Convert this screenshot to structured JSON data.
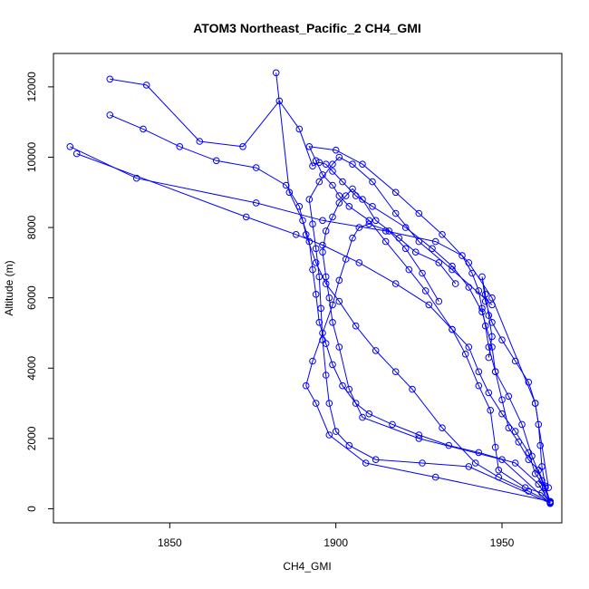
{
  "chart_data": {
    "type": "line",
    "title": "ATOM3 Northeast_Pacific_2 CH4_GMI",
    "xlabel": "CH4_GMI",
    "ylabel": "Altitude (m)",
    "xlim": [
      1815,
      1968
    ],
    "ylim": [
      -400,
      12950
    ],
    "xticks": [
      1850,
      1900,
      1950
    ],
    "yticks": [
      0,
      2000,
      4000,
      6000,
      8000,
      10000,
      12000
    ],
    "grid": false,
    "marker": "open-circle",
    "color": "#0000ff",
    "series": [
      {
        "x": [
          1964.5,
          1962,
          1957,
          1949,
          1948,
          1946.5,
          1943,
          1939,
          1935,
          1927,
          1922,
          1915,
          1910,
          1904,
          1901,
          1899,
          1896,
          1894,
          1892,
          1900,
          1908,
          1918,
          1925,
          1932,
          1940,
          1947,
          1960,
          1964
        ],
        "y": [
          180,
          450,
          600,
          1100,
          1750,
          2800,
          3500,
          4400,
          5100,
          6200,
          6800,
          7600,
          8200,
          8600,
          8900,
          9200,
          9500,
          9900,
          10300,
          10200,
          9800,
          9000,
          8400,
          7800,
          7000,
          6000,
          3000,
          600
        ]
      },
      {
        "x": [
          1964.5,
          1963,
          1961,
          1958,
          1955,
          1952,
          1950,
          1948,
          1947,
          1944,
          1940,
          1935,
          1929,
          1921,
          1911,
          1906,
          1902,
          1899,
          1897,
          1895,
          1893,
          1889,
          1883,
          1872,
          1859,
          1843,
          1832
        ],
        "y": [
          200,
          600,
          1100,
          1400,
          1900,
          2300,
          3100,
          3900,
          4600,
          5600,
          6300,
          6900,
          7400,
          8000,
          8600,
          8900,
          9300,
          9600,
          9800,
          9850,
          9750,
          10800,
          11600,
          10300,
          10450,
          12050,
          12220
        ]
      },
      {
        "x": [
          1964.5,
          1950,
          1925,
          1908,
          1904,
          1901,
          1899,
          1898,
          1897,
          1896,
          1897,
          1899,
          1901,
          1903,
          1905,
          1908,
          1912,
          1919,
          1924,
          1931,
          1936
        ],
        "y": [
          150,
          1400,
          2000,
          2600,
          3400,
          4600,
          5300,
          6000,
          6600,
          7300,
          7900,
          8300,
          8700,
          8900,
          9100,
          8800,
          8200,
          7700,
          7300,
          7000,
          6400
        ]
      },
      {
        "x": [
          1964.5,
          1961,
          1954,
          1943,
          1934,
          1925,
          1917,
          1910,
          1906,
          1902,
          1899,
          1897,
          1895,
          1894,
          1893,
          1892,
          1890,
          1886,
          1882
        ],
        "y": [
          170,
          700,
          1300,
          1600,
          1800,
          2100,
          2400,
          2700,
          3000,
          3500,
          4100,
          4700,
          5300,
          6100,
          6800,
          7600,
          8200,
          9000,
          12400
        ]
      },
      {
        "x": [
          1964.5,
          1940,
          1926,
          1912,
          1904,
          1900,
          1898,
          1897,
          1896,
          1895.5,
          1895,
          1894,
          1893,
          1892,
          1895,
          1899,
          1901,
          1905,
          1911,
          1918,
          1925,
          1935,
          1947
        ],
        "y": [
          160,
          1200,
          1300,
          1400,
          1800,
          2200,
          3000,
          3800,
          4800,
          5700,
          6600,
          7400,
          8100,
          8800,
          9300,
          9800,
          10000,
          9800,
          9300,
          8400,
          7600,
          6800,
          5800
        ]
      },
      {
        "x": [
          1964.5,
          1958,
          1949,
          1942,
          1932,
          1923,
          1918,
          1912,
          1906,
          1901,
          1897,
          1894,
          1891,
          1889,
          1885,
          1876,
          1864,
          1853,
          1842,
          1832
        ],
        "y": [
          190,
          500,
          900,
          1300,
          2300,
          3400,
          3900,
          4500,
          5200,
          5900,
          6400,
          7000,
          7800,
          8600,
          9200,
          9700,
          9900,
          10300,
          10800,
          11200
        ]
      },
      {
        "x": [
          1964.5,
          1930,
          1909,
          1898,
          1894,
          1891,
          1893,
          1896,
          1899,
          1901,
          1903,
          1905,
          1907,
          1910,
          1916,
          1921,
          1926,
          1931
        ],
        "y": [
          210,
          900,
          1300,
          2100,
          3000,
          3500,
          4200,
          5000,
          5800,
          6500,
          7100,
          7700,
          8000,
          8100,
          7900,
          7400,
          6700,
          5900
        ]
      },
      {
        "x": [
          1964.5,
          1962,
          1959,
          1956,
          1952,
          1948,
          1946,
          1945,
          1944,
          1943,
          1941,
          1938,
          1930,
          1915,
          1896,
          1876,
          1840,
          1820
        ],
        "y": [
          160,
          800,
          1500,
          2400,
          3200,
          3900,
          4600,
          5200,
          5700,
          6200,
          6700,
          7200,
          7600,
          7900,
          8200,
          8700,
          9400,
          10300
        ]
      },
      {
        "x": [
          1964.5,
          1963,
          1960,
          1958,
          1954,
          1950,
          1946,
          1943,
          1940,
          1935,
          1928,
          1918,
          1907,
          1896,
          1888,
          1873,
          1822
        ],
        "y": [
          170,
          600,
          1000,
          1600,
          2200,
          2700,
          3300,
          3900,
          4600,
          5100,
          5800,
          6400,
          7000,
          7500,
          7800,
          8300,
          10100
        ]
      },
      {
        "x": [
          1964.5,
          1963,
          1962,
          1961.5,
          1961,
          1960,
          1958,
          1954,
          1950,
          1947,
          1945,
          1944,
          1945,
          1946,
          1947,
          1946
        ],
        "y": [
          190,
          650,
          1200,
          1800,
          2400,
          3000,
          3600,
          4200,
          4800,
          5300,
          5900,
          6600,
          6100,
          5500,
          4900,
          4300
        ]
      }
    ]
  }
}
